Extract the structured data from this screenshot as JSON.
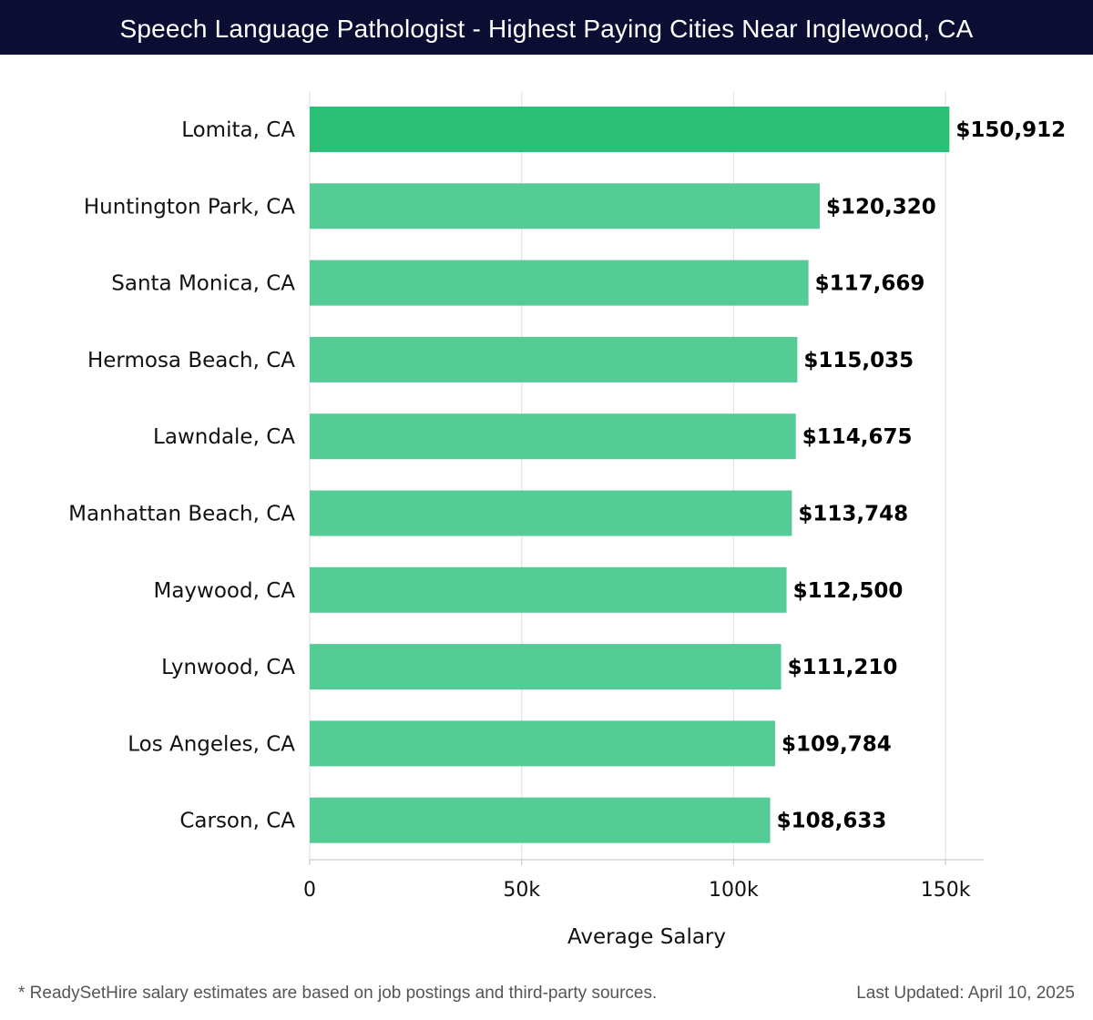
{
  "header": {
    "title": "Speech Language Pathologist - Highest Paying Cities Near Inglewood, CA"
  },
  "chart_data": {
    "type": "bar",
    "orientation": "horizontal",
    "title": "Speech Language Pathologist - Highest Paying Cities Near Inglewood, CA",
    "xlabel": "Average Salary",
    "ylabel": "",
    "xlim": [
      0,
      159000
    ],
    "xticks": [
      0,
      50000,
      100000,
      150000
    ],
    "xtick_labels": [
      "0",
      "50k",
      "100k",
      "150k"
    ],
    "grid": true,
    "categories": [
      "Lomita, CA",
      "Huntington Park, CA",
      "Santa Monica, CA",
      "Hermosa Beach, CA",
      "Lawndale, CA",
      "Manhattan Beach, CA",
      "Maywood, CA",
      "Lynwood, CA",
      "Los Angeles, CA",
      "Carson, CA"
    ],
    "values": [
      150912,
      120320,
      117669,
      115035,
      114675,
      113748,
      112500,
      111210,
      109784,
      108633
    ],
    "value_labels": [
      "$150,912",
      "$120,320",
      "$117,669",
      "$115,035",
      "$114,675",
      "$113,748",
      "$112,500",
      "$111,210",
      "$109,784",
      "$108,633"
    ],
    "colors": {
      "top_bar": "#2bbf78",
      "bar": "#55cc95",
      "grid": "#e3e3e3",
      "axis": "#cccccc",
      "text": "#111111"
    }
  },
  "footer": {
    "note": "* ReadySetHire salary estimates are based on job postings and third-party sources.",
    "updated": "Last Updated: April 10, 2025"
  }
}
